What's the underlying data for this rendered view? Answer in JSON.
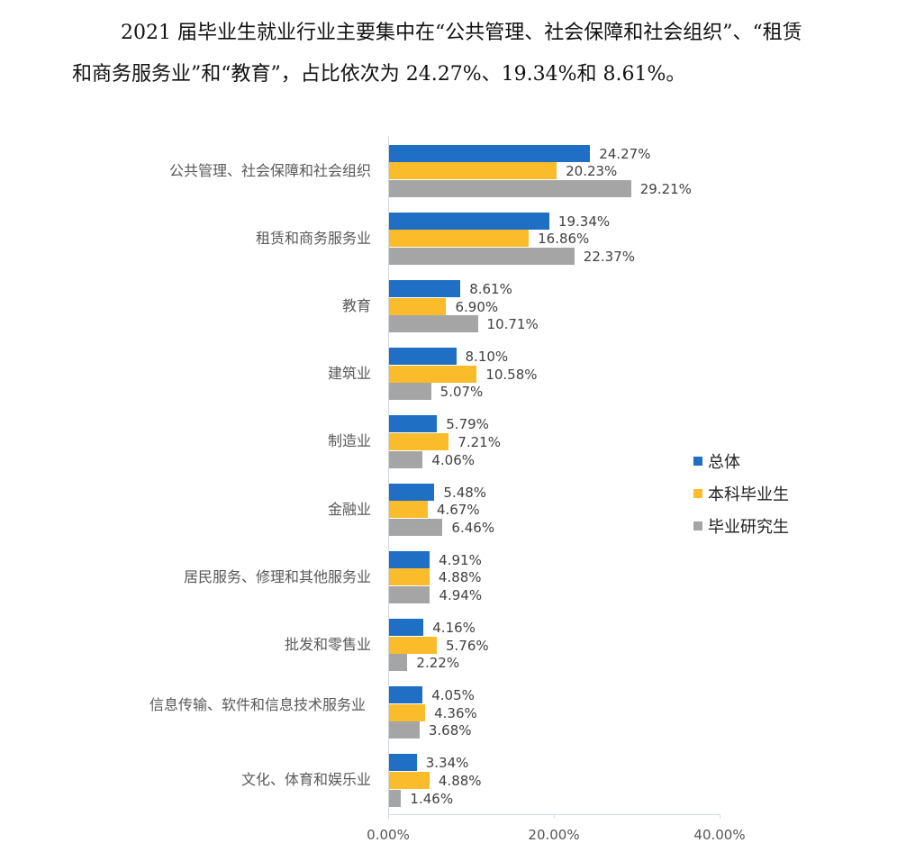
{
  "paragraph": {
    "line1": "2021 届毕业生就业行业主要集中在“公共管理、社会保障和社会组织”、“租赁",
    "line2": "和商务服务业”和“教育”，占比依次为 24.27%、19.34%和 8.61%。"
  },
  "legend": [
    {
      "label": "总体",
      "color": "#1F6FC5"
    },
    {
      "label": "本科毕业生",
      "color": "#FBBC2C"
    },
    {
      "label": "毕业研究生",
      "color": "#A5A5A5"
    }
  ],
  "x_ticks": [
    "0.00%",
    "20.00%",
    "40.00%"
  ],
  "chart_data": {
    "type": "bar",
    "orientation": "horizontal",
    "title": "",
    "xlabel": "",
    "ylabel": "",
    "xlim": [
      0,
      40
    ],
    "grid": false,
    "legend_position": "right",
    "categories": [
      "公共管理、社会保障和社会组织",
      "租赁和商务服务业",
      "教育",
      "建筑业",
      "制造业",
      "金融业",
      "居民服务、修理和其他服务业",
      "批发和零售业",
      "信息传输、软件和信息技术服务业",
      "文化、体育和娱乐业"
    ],
    "series": [
      {
        "name": "总体",
        "color": "#1F6FC5",
        "values": [
          24.27,
          19.34,
          8.61,
          8.1,
          5.79,
          5.48,
          4.91,
          4.16,
          4.05,
          3.34
        ],
        "labels": [
          "24.27%",
          "19.34%",
          "8.61%",
          "8.10%",
          "5.79%",
          "5.48%",
          "4.91%",
          "4.16%",
          "4.05%",
          "3.34%"
        ]
      },
      {
        "name": "本科毕业生",
        "color": "#FBBC2C",
        "values": [
          20.23,
          16.86,
          6.9,
          10.58,
          7.21,
          4.67,
          4.88,
          5.76,
          4.36,
          4.88
        ],
        "labels": [
          "20.23%",
          "16.86%",
          "6.90%",
          "10.58%",
          "7.21%",
          "4.67%",
          "4.88%",
          "5.76%",
          "4.36%",
          "4.88%"
        ]
      },
      {
        "name": "毕业研究生",
        "color": "#A5A5A5",
        "values": [
          29.21,
          22.37,
          10.71,
          5.07,
          4.06,
          6.46,
          4.94,
          2.22,
          3.68,
          1.46
        ],
        "labels": [
          "29.21%",
          "22.37%",
          "10.71%",
          "5.07%",
          "4.06%",
          "6.46%",
          "4.94%",
          "2.22%",
          "3.68%",
          "1.46%"
        ]
      }
    ]
  }
}
